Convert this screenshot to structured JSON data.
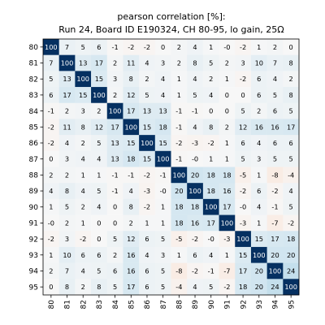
{
  "chart_data": {
    "type": "heatmap",
    "title_line1": "pearson correlation [%]:",
    "title_line2": "Run 24, Board ID E190324, CH 80-95, lo gain, 25Ω",
    "x_labels": [
      "80",
      "81",
      "82",
      "83",
      "84",
      "85",
      "86",
      "87",
      "88",
      "89",
      "90",
      "91",
      "92",
      "93",
      "94",
      "95"
    ],
    "y_labels": [
      "80",
      "81",
      "82",
      "83",
      "84",
      "85",
      "86",
      "87",
      "88",
      "89",
      "90",
      "91",
      "92",
      "93",
      "94",
      "95"
    ],
    "values": [
      [
        100,
        7,
        5,
        6,
        -1,
        -2,
        -2,
        0,
        2,
        4,
        1,
        0,
        -2,
        1,
        2,
        0
      ],
      [
        7,
        100,
        13,
        17,
        2,
        11,
        4,
        3,
        2,
        8,
        5,
        2,
        3,
        10,
        7,
        8
      ],
      [
        5,
        13,
        100,
        15,
        3,
        8,
        2,
        4,
        1,
        4,
        2,
        1,
        -2,
        6,
        4,
        2
      ],
      [
        6,
        17,
        15,
        100,
        2,
        12,
        5,
        4,
        1,
        5,
        4,
        0,
        0,
        6,
        5,
        8
      ],
      [
        -1,
        2,
        3,
        2,
        100,
        17,
        13,
        13,
        -1,
        -1,
        0,
        0,
        5,
        2,
        6,
        5
      ],
      [
        -2,
        11,
        8,
        12,
        17,
        100,
        15,
        18,
        -1,
        4,
        8,
        2,
        12,
        16,
        16,
        17
      ],
      [
        -2,
        4,
        2,
        5,
        13,
        15,
        100,
        15,
        -2,
        -3,
        -2,
        1,
        6,
        4,
        6,
        6
      ],
      [
        0,
        3,
        4,
        4,
        13,
        18,
        15,
        100,
        -1,
        0,
        1,
        1,
        5,
        3,
        5,
        5
      ],
      [
        2,
        2,
        1,
        1,
        -1,
        -1,
        -2,
        -1,
        100,
        20,
        18,
        18,
        -5,
        1,
        -8,
        -4
      ],
      [
        4,
        8,
        4,
        5,
        -1,
        4,
        -3,
        0,
        20,
        100,
        18,
        16,
        -2,
        6,
        -2,
        4
      ],
      [
        1,
        5,
        2,
        4,
        0,
        8,
        -2,
        1,
        18,
        18,
        100,
        17,
        0,
        4,
        -1,
        5
      ],
      [
        0,
        2,
        1,
        0,
        0,
        2,
        1,
        1,
        18,
        16,
        17,
        100,
        -3,
        1,
        -7,
        -2
      ],
      [
        -2,
        3,
        -2,
        0,
        5,
        12,
        6,
        5,
        -5,
        -2,
        0,
        -3,
        100,
        15,
        17,
        18
      ],
      [
        1,
        10,
        6,
        6,
        2,
        16,
        4,
        3,
        1,
        6,
        4,
        1,
        15,
        100,
        20,
        20
      ],
      [
        2,
        7,
        4,
        5,
        6,
        16,
        6,
        5,
        -8,
        -2,
        -1,
        -7,
        17,
        20,
        100,
        24
      ],
      [
        0,
        8,
        2,
        8,
        5,
        17,
        6,
        5,
        -4,
        4,
        5,
        -2,
        18,
        20,
        24,
        100
      ]
    ]
  }
}
